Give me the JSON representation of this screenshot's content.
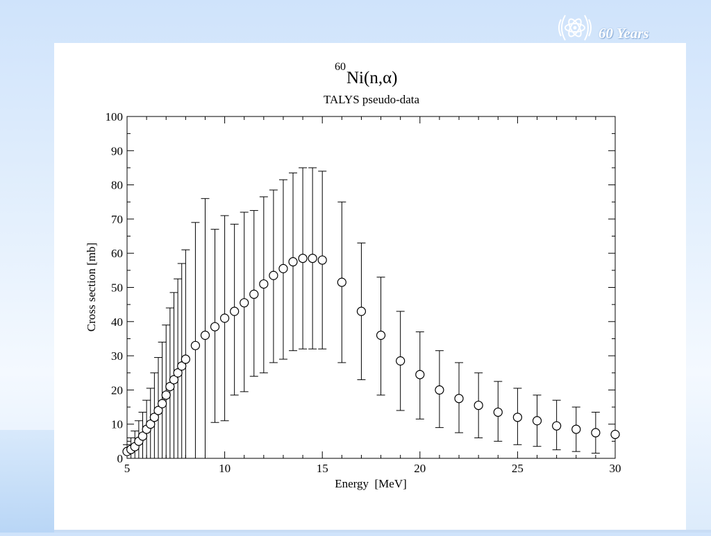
{
  "logo": {
    "text": "60 Years",
    "icon": "atom-emblem-icon"
  },
  "chart_data": {
    "type": "scatter",
    "title_superscript": "60",
    "title_main": "Ni(n,α)",
    "subtitle": "TALYS pseudo-data",
    "xlabel": "Energy  [MeV]",
    "ylabel": "Cross section [mb]",
    "xlim": [
      5,
      30
    ],
    "ylim": [
      0,
      100
    ],
    "xticks": [
      5,
      10,
      15,
      20,
      25,
      30
    ],
    "yticks": [
      0,
      10,
      20,
      30,
      40,
      50,
      60,
      70,
      80,
      90,
      100
    ],
    "xtick_labels": [
      "5",
      "10",
      "15",
      "20",
      "25",
      "30"
    ],
    "ytick_labels": [
      "0",
      "10",
      "20",
      "30",
      "40",
      "50",
      "60",
      "70",
      "80",
      "90",
      "100"
    ],
    "grid": false,
    "legend": "none",
    "marker": "open-circle",
    "points": [
      {
        "x": 5.0,
        "y": 2.0,
        "lo": 0,
        "hi": 4.0
      },
      {
        "x": 5.2,
        "y": 2.6,
        "lo": 0,
        "hi": 6.0
      },
      {
        "x": 5.4,
        "y": 3.4,
        "lo": 0,
        "hi": 8.0
      },
      {
        "x": 5.6,
        "y": 5.0,
        "lo": 0,
        "hi": 11.0
      },
      {
        "x": 5.8,
        "y": 6.5,
        "lo": 0,
        "hi": 13.5
      },
      {
        "x": 6.0,
        "y": 8.5,
        "lo": 0,
        "hi": 17.0
      },
      {
        "x": 6.2,
        "y": 10.0,
        "lo": 0,
        "hi": 20.5
      },
      {
        "x": 6.4,
        "y": 12.0,
        "lo": 0,
        "hi": 25.0
      },
      {
        "x": 6.6,
        "y": 14.0,
        "lo": 0,
        "hi": 29.5
      },
      {
        "x": 6.8,
        "y": 16.0,
        "lo": 0,
        "hi": 34.0
      },
      {
        "x": 7.0,
        "y": 18.5,
        "lo": 0,
        "hi": 39.0
      },
      {
        "x": 7.2,
        "y": 21.0,
        "lo": 0,
        "hi": 44.0
      },
      {
        "x": 7.4,
        "y": 23.0,
        "lo": 0,
        "hi": 48.5
      },
      {
        "x": 7.6,
        "y": 25.0,
        "lo": 0,
        "hi": 52.5
      },
      {
        "x": 7.8,
        "y": 27.0,
        "lo": 0,
        "hi": 57.0
      },
      {
        "x": 8.0,
        "y": 29.0,
        "lo": 0,
        "hi": 61.0
      },
      {
        "x": 8.5,
        "y": 33.0,
        "lo": 0,
        "hi": 69.0
      },
      {
        "x": 9.0,
        "y": 36.0,
        "lo": 0,
        "hi": 76.0
      },
      {
        "x": 9.5,
        "y": 38.5,
        "lo": 10.5,
        "hi": 67.0
      },
      {
        "x": 10.0,
        "y": 41.0,
        "lo": 11.0,
        "hi": 71.0
      },
      {
        "x": 10.5,
        "y": 43.0,
        "lo": 18.5,
        "hi": 68.5
      },
      {
        "x": 11.0,
        "y": 45.5,
        "lo": 19.5,
        "hi": 72.0
      },
      {
        "x": 11.5,
        "y": 48.0,
        "lo": 24.0,
        "hi": 72.5
      },
      {
        "x": 12.0,
        "y": 51.0,
        "lo": 25.0,
        "hi": 76.5
      },
      {
        "x": 12.5,
        "y": 53.5,
        "lo": 28.0,
        "hi": 78.5
      },
      {
        "x": 13.0,
        "y": 55.5,
        "lo": 29.0,
        "hi": 81.5
      },
      {
        "x": 13.5,
        "y": 57.5,
        "lo": 31.5,
        "hi": 83.5
      },
      {
        "x": 14.0,
        "y": 58.5,
        "lo": 32.0,
        "hi": 85.0
      },
      {
        "x": 14.5,
        "y": 58.5,
        "lo": 32.0,
        "hi": 85.0
      },
      {
        "x": 15.0,
        "y": 58.0,
        "lo": 32.0,
        "hi": 84.0
      },
      {
        "x": 16.0,
        "y": 51.5,
        "lo": 28.0,
        "hi": 75.0
      },
      {
        "x": 17.0,
        "y": 43.0,
        "lo": 23.0,
        "hi": 63.0
      },
      {
        "x": 18.0,
        "y": 36.0,
        "lo": 18.5,
        "hi": 53.0
      },
      {
        "x": 19.0,
        "y": 28.5,
        "lo": 14.0,
        "hi": 43.0
      },
      {
        "x": 20.0,
        "y": 24.5,
        "lo": 11.5,
        "hi": 37.0
      },
      {
        "x": 21.0,
        "y": 20.0,
        "lo": 9.0,
        "hi": 31.5
      },
      {
        "x": 22.0,
        "y": 17.5,
        "lo": 7.5,
        "hi": 28.0
      },
      {
        "x": 23.0,
        "y": 15.5,
        "lo": 6.0,
        "hi": 25.0
      },
      {
        "x": 24.0,
        "y": 13.5,
        "lo": 5.0,
        "hi": 22.5
      },
      {
        "x": 25.0,
        "y": 12.0,
        "lo": 4.0,
        "hi": 20.5
      },
      {
        "x": 26.0,
        "y": 11.0,
        "lo": 3.5,
        "hi": 18.5
      },
      {
        "x": 27.0,
        "y": 9.5,
        "lo": 2.5,
        "hi": 17.0
      },
      {
        "x": 28.0,
        "y": 8.5,
        "lo": 2.0,
        "hi": 15.0
      },
      {
        "x": 29.0,
        "y": 7.5,
        "lo": 1.5,
        "hi": 13.5
      },
      {
        "x": 30.0,
        "y": 7.0,
        "lo": 7.0,
        "hi": 7.0
      }
    ]
  }
}
